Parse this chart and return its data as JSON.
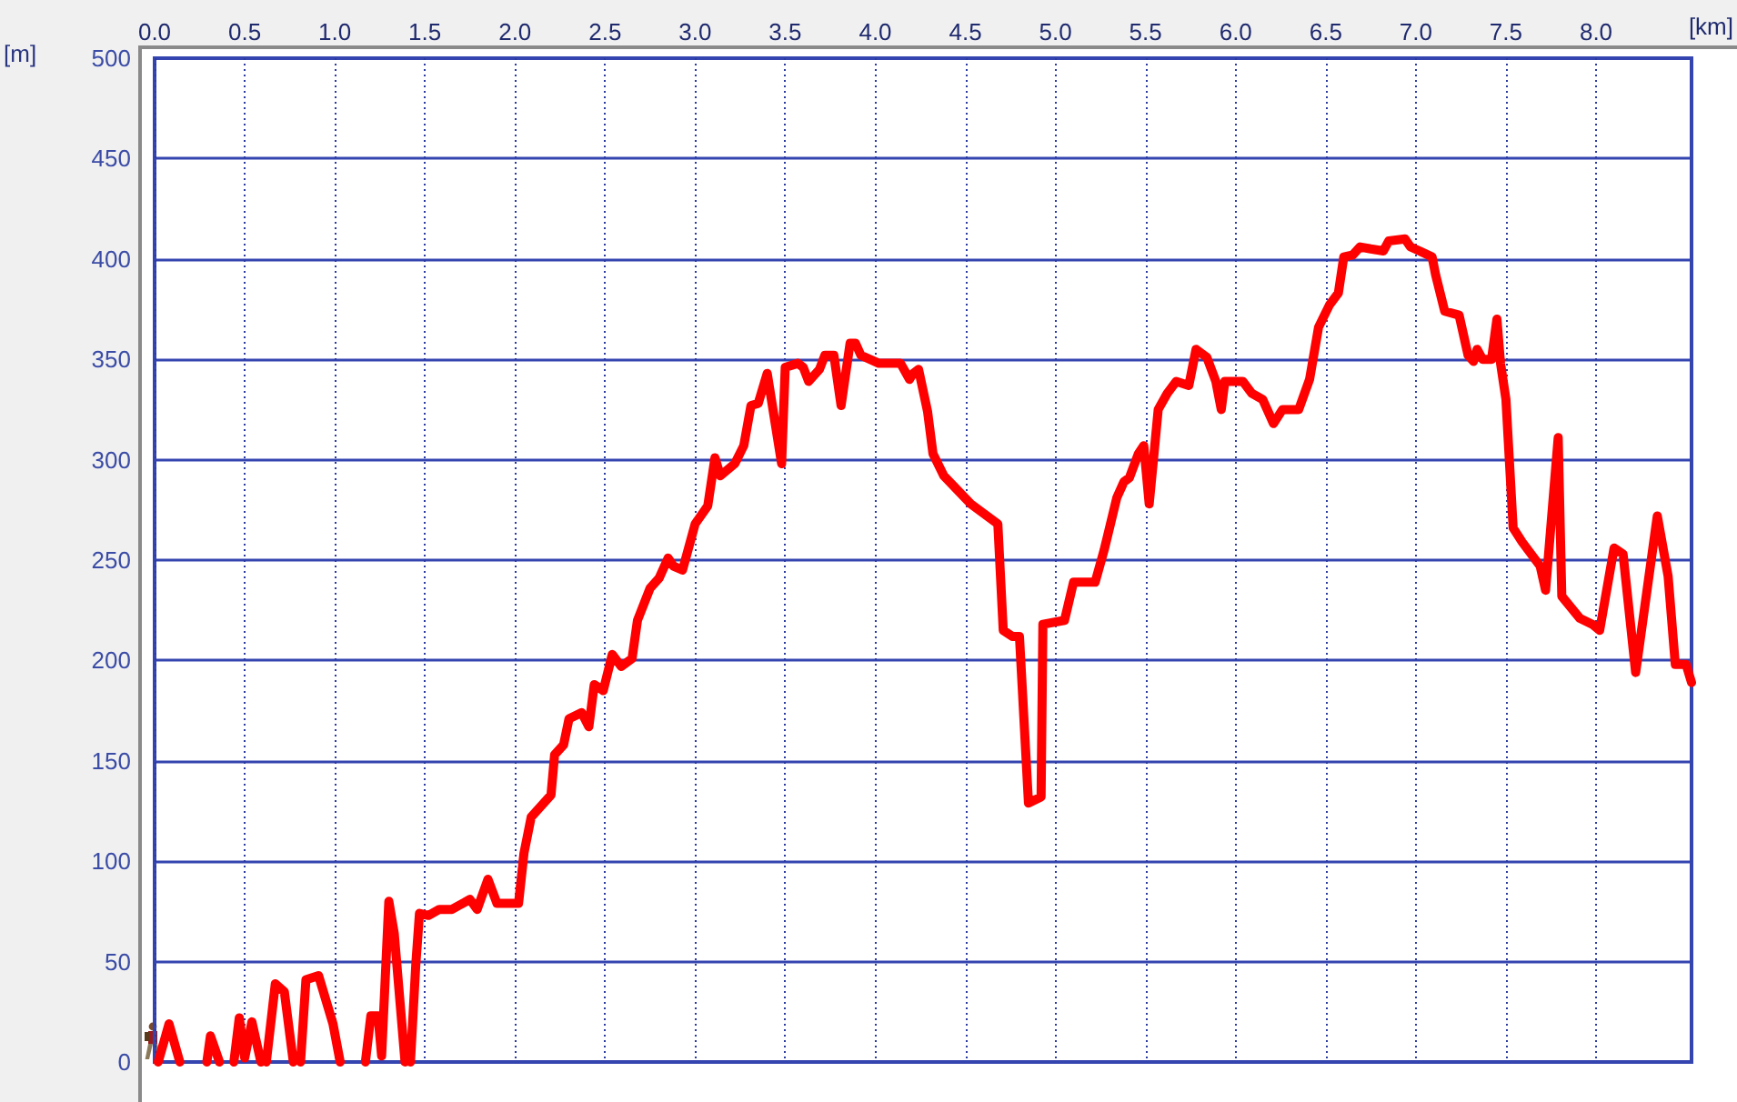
{
  "chart_data": {
    "type": "line",
    "xlabel": "[km]",
    "ylabel": "[m]",
    "x": [
      0.02,
      0.08,
      0.14,
      0.2,
      0.29,
      0.31,
      0.36,
      0.4,
      0.44,
      0.47,
      0.5,
      0.54,
      0.59,
      0.6,
      0.62,
      0.67,
      0.72,
      0.77,
      0.79,
      0.81,
      0.84,
      0.91,
      0.99,
      1.03,
      1.1,
      1.17,
      1.2,
      1.24,
      1.26,
      1.3,
      1.33,
      1.39,
      1.41,
      1.42,
      1.45,
      1.47,
      1.52,
      1.58,
      1.65,
      1.75,
      1.79,
      1.85,
      1.9,
      2.02,
      2.05,
      2.09,
      2.2,
      2.22,
      2.27,
      2.3,
      2.37,
      2.41,
      2.44,
      2.49,
      2.54,
      2.59,
      2.65,
      2.68,
      2.75,
      2.8,
      2.85,
      2.88,
      2.93,
      3.0,
      3.07,
      3.11,
      3.14,
      3.22,
      3.27,
      3.31,
      3.35,
      3.4,
      3.48,
      3.5,
      3.57,
      3.6,
      3.63,
      3.69,
      3.72,
      3.77,
      3.81,
      3.86,
      3.89,
      3.92,
      4.02,
      4.14,
      4.19,
      4.21,
      4.24,
      4.29,
      4.32,
      4.38,
      4.53,
      4.68,
      4.71,
      4.76,
      4.8,
      4.85,
      4.92,
      4.93,
      5.05,
      5.1,
      5.22,
      5.27,
      5.34,
      5.38,
      5.41,
      5.46,
      5.49,
      5.52,
      5.55,
      5.57,
      5.62,
      5.67,
      5.74,
      5.78,
      5.84,
      5.89,
      5.92,
      5.94,
      6.04,
      6.09,
      6.15,
      6.21,
      6.26,
      6.35,
      6.41,
      6.46,
      6.52,
      6.57,
      6.6,
      6.65,
      6.69,
      6.75,
      6.82,
      6.85,
      6.94,
      6.97,
      7.02,
      7.09,
      7.11,
      7.16,
      7.24,
      7.29,
      7.32,
      7.34,
      7.37,
      7.42,
      7.45,
      7.47,
      7.5,
      7.54,
      7.59,
      7.69,
      7.72,
      7.79,
      7.81,
      7.91,
      7.98,
      8.02,
      8.1,
      8.15,
      8.22,
      8.34,
      8.4,
      8.44,
      8.5,
      8.53
    ],
    "series": [
      {
        "color": "#ff0000",
        "values": [
          0,
          19,
          0,
          null,
          0,
          13,
          0,
          null,
          0,
          22,
          2,
          20,
          0,
          null,
          0,
          39,
          35,
          0,
          null,
          0,
          41,
          43,
          19,
          0,
          null,
          0,
          23,
          23,
          3,
          80,
          64,
          0,
          null,
          0,
          49,
          74,
          73,
          76,
          76,
          81,
          76,
          91,
          79,
          79,
          104,
          122,
          133,
          153,
          158,
          171,
          174,
          167,
          188,
          185,
          203,
          197,
          201,
          220,
          236,
          241,
          251,
          247,
          245,
          268,
          277,
          301,
          292,
          298,
          307,
          327,
          328,
          343,
          298,
          346,
          348,
          346,
          339,
          345,
          352,
          352,
          327,
          358,
          358,
          352,
          348,
          348,
          340,
          343,
          345,
          324,
          303,
          292,
          278,
          268,
          215,
          212,
          212,
          129,
          132,
          218,
          220,
          239,
          239,
          255,
          281,
          289,
          291,
          303,
          307,
          278,
          306,
          325,
          333,
          339,
          337,
          355,
          351,
          339,
          325,
          339,
          339,
          333,
          330,
          318,
          325,
          325,
          340,
          366,
          377,
          383,
          401,
          402,
          406,
          405,
          404,
          409,
          410,
          406,
          404,
          401,
          392,
          374,
          372,
          352,
          349,
          355,
          350,
          350,
          370,
          348,
          330,
          266,
          259,
          247,
          235,
          311,
          232,
          221,
          218,
          215,
          256,
          253,
          194,
          272,
          242,
          198,
          198,
          189
        ]
      }
    ],
    "xlim": [
      0,
      8.53
    ],
    "ylim": [
      0,
      500
    ],
    "xticks": [
      {
        "value": 0,
        "label": "0.0"
      },
      0.5,
      {
        "value": 1,
        "label": "1.0"
      },
      1.5,
      {
        "value": 2,
        "label": "2.0"
      },
      2.5,
      {
        "value": 3,
        "label": "3.0"
      },
      3.5,
      {
        "value": 4,
        "label": "4.0"
      },
      4.5,
      {
        "value": 5,
        "label": "5.0"
      },
      5.5,
      {
        "value": 6,
        "label": "6.0"
      },
      6.5,
      {
        "value": 7,
        "label": "7.0"
      },
      7.5,
      {
        "value": 8,
        "label": "8.0"
      }
    ],
    "yticks": [
      0,
      50,
      100,
      150,
      200,
      250,
      300,
      350,
      400,
      450,
      500
    ],
    "grid": true
  }
}
